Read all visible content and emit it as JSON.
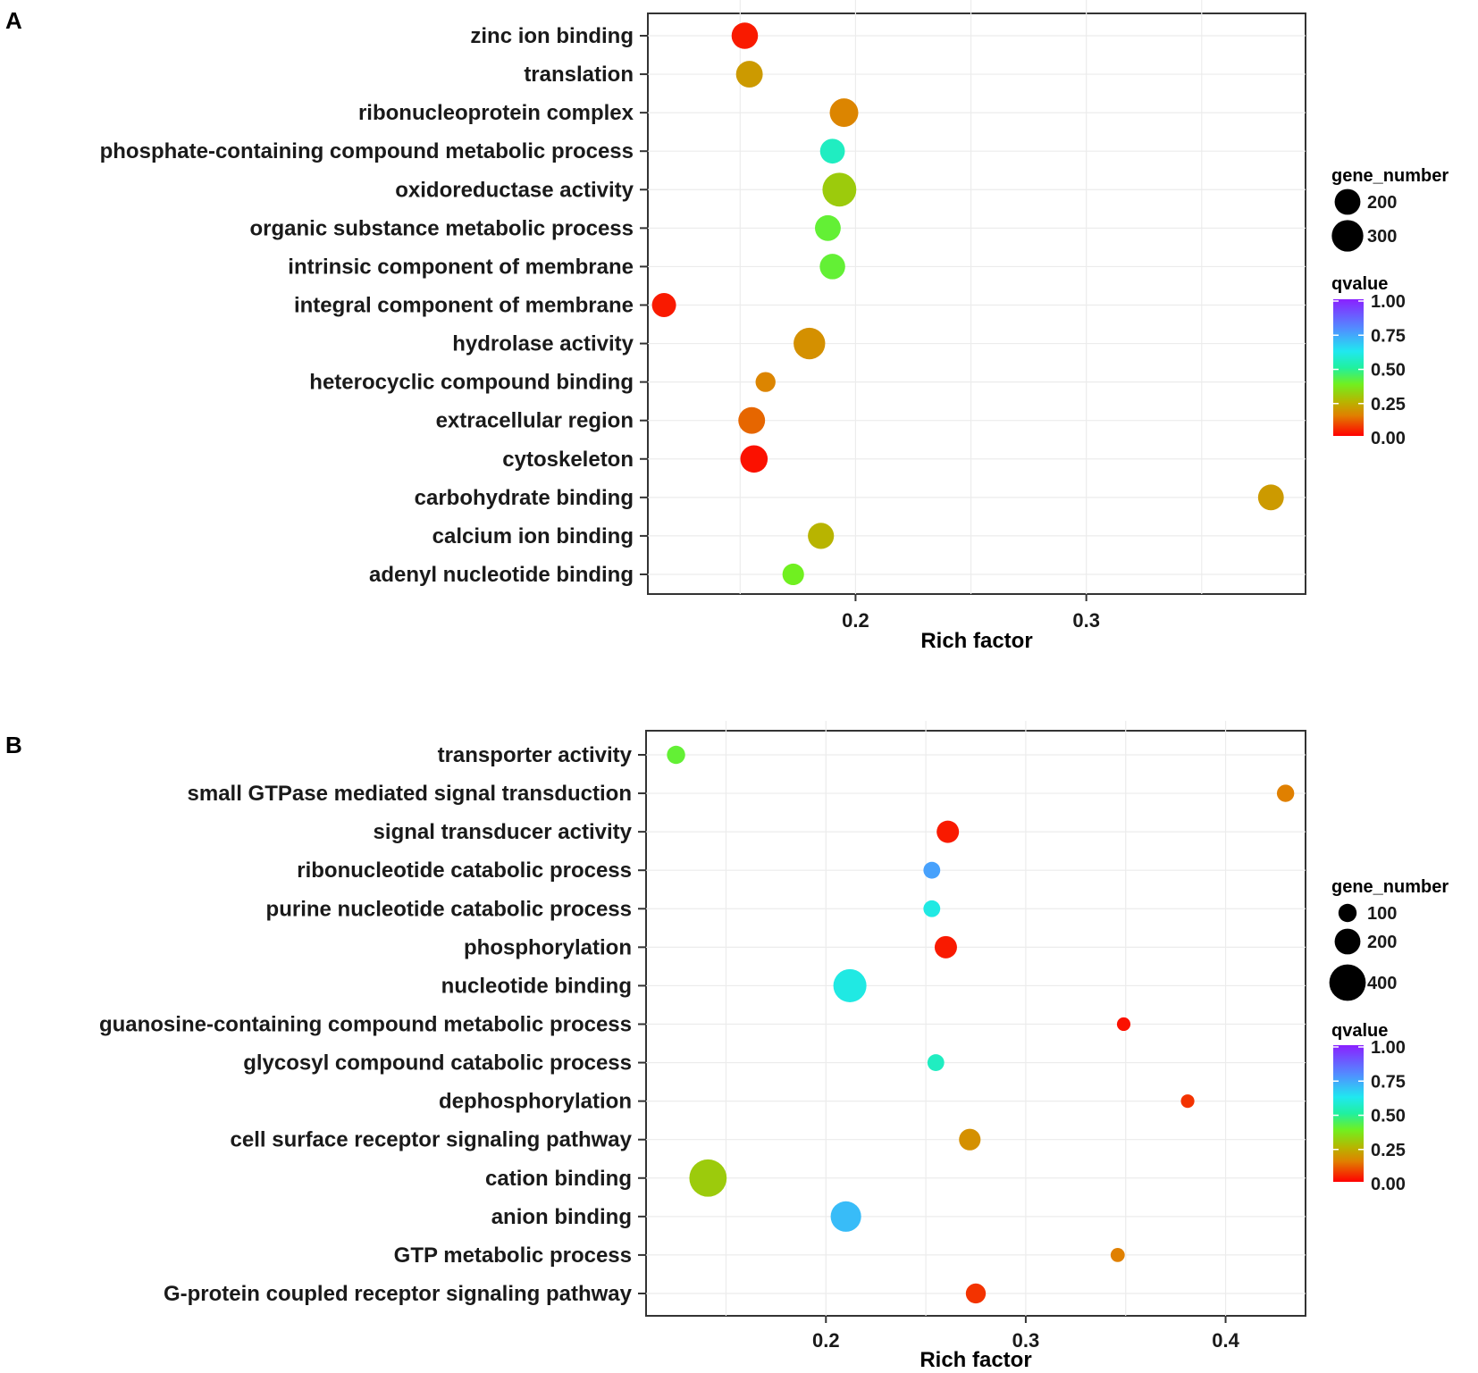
{
  "chart_data": [
    {
      "panel": "A",
      "type": "scatter",
      "title": "",
      "xlabel": "Rich factor",
      "ylabel": "",
      "xlim": [
        0.11,
        0.395
      ],
      "xticks": [
        0.2,
        0.3
      ],
      "xtick_labels": [
        "0.2",
        "0.3"
      ],
      "grid": true,
      "categories": [
        "zinc ion binding",
        "translation",
        "ribonucleoprotein complex",
        "phosphate-containing compound metabolic process",
        "oxidoreductase activity",
        "organic substance metabolic process",
        "intrinsic component of membrane",
        "integral component of membrane",
        "hydrolase activity",
        "heterocyclic compound binding",
        "extracellular region",
        "cytoskeleton",
        "carbohydrate binding",
        "calcium ion binding",
        "adenyl nucleotide binding"
      ],
      "points": [
        {
          "term": "zinc ion binding",
          "rich_factor": 0.152,
          "gene_number": 210,
          "qvalue": 0.03
        },
        {
          "term": "translation",
          "rich_factor": 0.154,
          "gene_number": 215,
          "qvalue": 0.2
        },
        {
          "term": "ribonucleoprotein complex",
          "rich_factor": 0.195,
          "gene_number": 245,
          "qvalue": 0.16
        },
        {
          "term": "phosphate-containing compound metabolic process",
          "rich_factor": 0.19,
          "gene_number": 185,
          "qvalue": 0.55
        },
        {
          "term": "oxidoreductase activity",
          "rich_factor": 0.193,
          "gene_number": 345,
          "qvalue": 0.3
        },
        {
          "term": "organic substance metabolic process",
          "rich_factor": 0.188,
          "gene_number": 200,
          "qvalue": 0.4
        },
        {
          "term": "intrinsic component of membrane",
          "rich_factor": 0.19,
          "gene_number": 195,
          "qvalue": 0.4
        },
        {
          "term": "integral component of membrane",
          "rich_factor": 0.117,
          "gene_number": 175,
          "qvalue": 0.03
        },
        {
          "term": "hydrolase activity",
          "rich_factor": 0.18,
          "gene_number": 300,
          "qvalue": 0.18
        },
        {
          "term": "heterocyclic compound binding",
          "rich_factor": 0.161,
          "gene_number": 120,
          "qvalue": 0.16
        },
        {
          "term": "extracellular region",
          "rich_factor": 0.155,
          "gene_number": 215,
          "qvalue": 0.12
        },
        {
          "term": "cytoskeleton",
          "rich_factor": 0.156,
          "gene_number": 225,
          "qvalue": 0.02
        },
        {
          "term": "carbohydrate binding",
          "rich_factor": 0.38,
          "gene_number": 200,
          "qvalue": 0.2
        },
        {
          "term": "calcium ion binding",
          "rich_factor": 0.185,
          "gene_number": 205,
          "qvalue": 0.25
        },
        {
          "term": "adenyl nucleotide binding",
          "rich_factor": 0.173,
          "gene_number": 140,
          "qvalue": 0.38
        }
      ],
      "legend": {
        "size_title": "gene_number",
        "size_entries": [
          200,
          300
        ],
        "size_labels": [
          "200",
          "300"
        ],
        "color_title": "qvalue",
        "color_ticks": [
          "1.00",
          "0.75",
          "0.50",
          "0.25",
          "0.00"
        ]
      }
    },
    {
      "panel": "B",
      "type": "scatter",
      "title": "",
      "xlabel": "Rich factor",
      "ylabel": "",
      "xlim": [
        0.11,
        0.44
      ],
      "xticks": [
        0.2,
        0.3,
        0.4
      ],
      "xtick_labels": [
        "0.2",
        "0.3",
        "0.4"
      ],
      "grid": true,
      "categories": [
        "transporter activity",
        "small GTPase mediated signal transduction",
        "signal transducer activity",
        "ribonucleotide catabolic process",
        "purine nucleotide catabolic process",
        "phosphorylation",
        "nucleotide binding",
        "guanosine-containing compound metabolic process",
        "glycosyl compound catabolic process",
        "dephosphorylation",
        "cell surface receptor signaling pathway",
        "cation binding",
        "anion binding",
        "GTP metabolic process",
        "G-protein coupled receptor signaling pathway"
      ],
      "points": [
        {
          "term": "transporter activity",
          "rich_factor": 0.125,
          "gene_number": 100,
          "qvalue": 0.4
        },
        {
          "term": "small GTPase mediated signal transduction",
          "rich_factor": 0.43,
          "gene_number": 90,
          "qvalue": 0.15
        },
        {
          "term": "signal transducer activity",
          "rich_factor": 0.261,
          "gene_number": 150,
          "qvalue": 0.03
        },
        {
          "term": "ribonucleotide catabolic process",
          "rich_factor": 0.253,
          "gene_number": 85,
          "qvalue": 0.75
        },
        {
          "term": "purine nucleotide catabolic process",
          "rich_factor": 0.253,
          "gene_number": 85,
          "qvalue": 0.6
        },
        {
          "term": "phosphorylation",
          "rich_factor": 0.26,
          "gene_number": 150,
          "qvalue": 0.03
        },
        {
          "term": "nucleotide binding",
          "rich_factor": 0.212,
          "gene_number": 330,
          "qvalue": 0.6
        },
        {
          "term": "guanosine-containing compound metabolic process",
          "rich_factor": 0.349,
          "gene_number": 55,
          "qvalue": 0.02
        },
        {
          "term": "glycosyl compound catabolic process",
          "rich_factor": 0.255,
          "gene_number": 85,
          "qvalue": 0.55
        },
        {
          "term": "dephosphorylation",
          "rich_factor": 0.381,
          "gene_number": 55,
          "qvalue": 0.06
        },
        {
          "term": "cell surface receptor signaling pathway",
          "rich_factor": 0.272,
          "gene_number": 140,
          "qvalue": 0.18
        },
        {
          "term": "cation binding",
          "rich_factor": 0.141,
          "gene_number": 420,
          "qvalue": 0.3
        },
        {
          "term": "anion binding",
          "rich_factor": 0.21,
          "gene_number": 280,
          "qvalue": 0.7
        },
        {
          "term": "GTP metabolic process",
          "rich_factor": 0.346,
          "gene_number": 60,
          "qvalue": 0.15
        },
        {
          "term": "G-protein coupled receptor signaling pathway",
          "rich_factor": 0.275,
          "gene_number": 120,
          "qvalue": 0.06
        }
      ],
      "legend": {
        "size_title": "gene_number",
        "size_entries": [
          100,
          200,
          400
        ],
        "size_labels": [
          "100",
          "200",
          "400"
        ],
        "color_title": "qvalue",
        "color_ticks": [
          "1.00",
          "0.75",
          "0.50",
          "0.25",
          "0.00"
        ]
      }
    }
  ]
}
